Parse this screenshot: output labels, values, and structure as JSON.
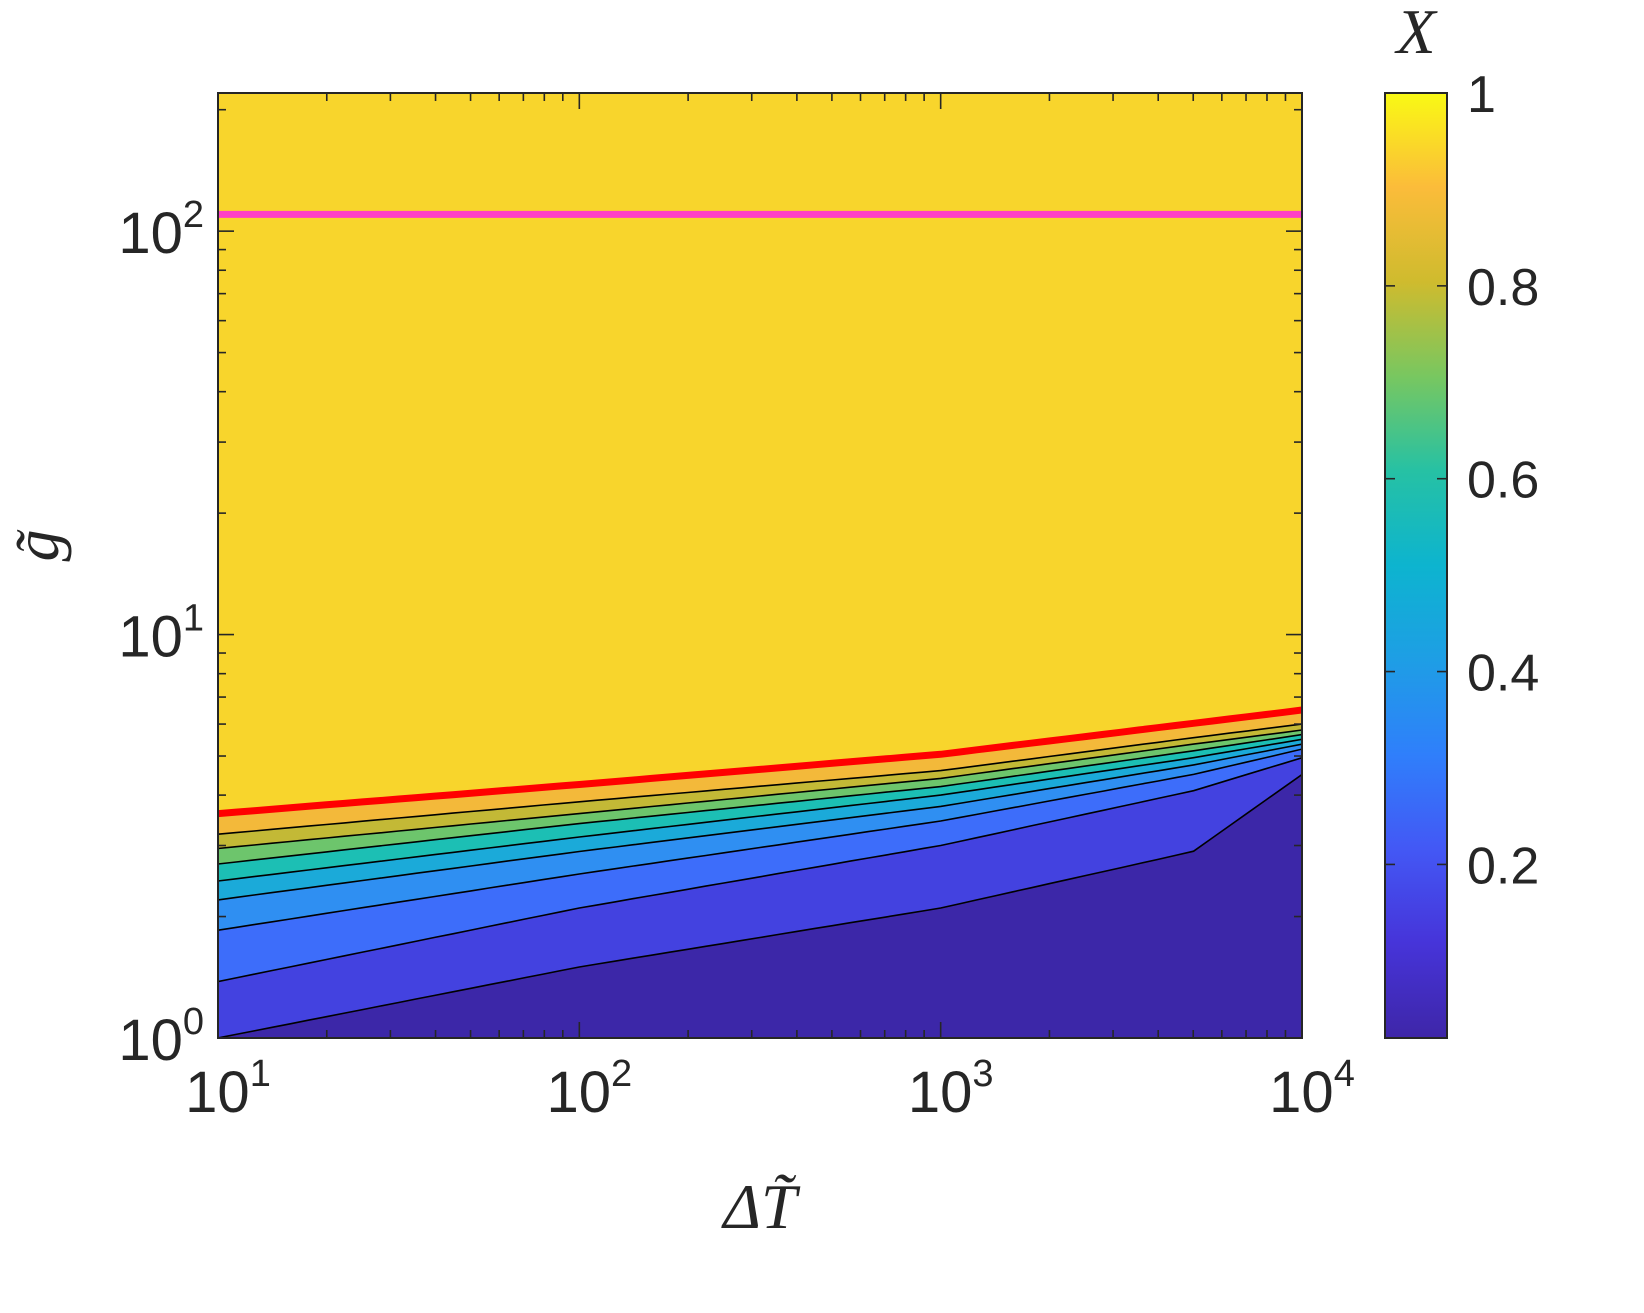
{
  "chart_data": {
    "type": "heatmap",
    "subtype": "filled-contour",
    "xlabel": "ΔT̃",
    "ylabel": "g̃",
    "colorbar_label": "X",
    "x_scale": "log",
    "y_scale": "log",
    "xlim": [
      10,
      10000
    ],
    "ylim": [
      1,
      220
    ],
    "x_ticks": [
      {
        "value": 10,
        "base": "10",
        "exp": "1"
      },
      {
        "value": 100,
        "base": "10",
        "exp": "2"
      },
      {
        "value": 1000,
        "base": "10",
        "exp": "3"
      },
      {
        "value": 10000,
        "base": "10",
        "exp": "4"
      }
    ],
    "y_ticks": [
      {
        "value": 1,
        "base": "10",
        "exp": "0"
      },
      {
        "value": 10,
        "base": "10",
        "exp": "1"
      },
      {
        "value": 100,
        "base": "10",
        "exp": "2"
      }
    ],
    "colorbar": {
      "colormap": "parula",
      "range": [
        0.02,
        1
      ],
      "ticks": [
        {
          "value": 0.2,
          "label": "0.2"
        },
        {
          "value": 0.4,
          "label": "0.4"
        },
        {
          "value": 0.6,
          "label": "0.6"
        },
        {
          "value": 0.8,
          "label": "0.8"
        },
        {
          "value": 1,
          "label": "1"
        }
      ]
    },
    "contour_bands": [
      {
        "value": 0.05,
        "color": "#3c27a8",
        "upper_g": [
          1.0,
          1.5,
          2.1,
          2.9,
          4.5
        ]
      },
      {
        "value": 0.15,
        "color": "#4342e0",
        "upper_g": [
          1.38,
          2.1,
          3.0,
          4.1,
          4.95
        ]
      },
      {
        "value": 0.25,
        "color": "#3d6dfa",
        "upper_g": [
          1.85,
          2.55,
          3.45,
          4.5,
          5.2
        ]
      },
      {
        "value": 0.35,
        "color": "#2f8ff2",
        "upper_g": [
          2.2,
          2.9,
          3.75,
          4.75,
          5.35
        ]
      },
      {
        "value": 0.45,
        "color": "#1baad9",
        "upper_g": [
          2.45,
          3.15,
          4.0,
          4.95,
          5.5
        ]
      },
      {
        "value": 0.55,
        "color": "#1cbfb4",
        "upper_g": [
          2.7,
          3.4,
          4.2,
          5.15,
          5.65
        ]
      },
      {
        "value": 0.65,
        "color": "#6dc56c",
        "upper_g": [
          2.95,
          3.6,
          4.4,
          5.35,
          5.8
        ]
      },
      {
        "value": 0.75,
        "color": "#c3b936",
        "upper_g": [
          3.2,
          3.85,
          4.6,
          5.55,
          6.0
        ]
      },
      {
        "value": 0.85,
        "color": "#f3b93a",
        "upper_g": [
          3.55,
          4.2,
          4.95,
          5.9,
          6.4
        ]
      },
      {
        "value": 0.95,
        "color": "#f8d52c",
        "upper_g": [
          220,
          220,
          220,
          220,
          220
        ]
      }
    ],
    "contour_x": [
      10,
      100,
      1000,
      5000,
      10000
    ],
    "lines": [
      {
        "color": "#ff0000",
        "x": [
          10,
          100,
          1000,
          10000
        ],
        "y": [
          3.6,
          4.25,
          5.05,
          6.5
        ]
      },
      {
        "color": "#ff3fc4",
        "x": [
          10,
          10000
        ],
        "y": [
          110,
          110
        ]
      }
    ]
  }
}
